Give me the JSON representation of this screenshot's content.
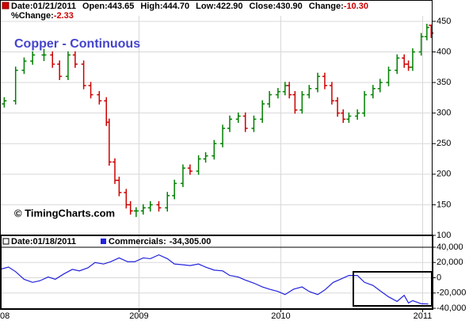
{
  "chart_data": [
    {
      "type": "ohlc",
      "title": "Copper - Continuous",
      "credit": "© TimingCharts.com",
      "info": [
        [
          {
            "label": "Date:",
            "value": "01/21/2011"
          },
          {
            "label": "Open:",
            "value": "443.65"
          },
          {
            "label": "High:",
            "value": "444.70"
          },
          {
            "label": "Low:",
            "value": "422.90"
          },
          {
            "label": "Close:",
            "value": "430.90"
          },
          {
            "label": "Change:",
            "value": "-10.30",
            "value_color": "#cc0000"
          }
        ],
        [
          {
            "label": "%Change:",
            "value": "-2.33",
            "value_color": "#cc0000"
          }
        ]
      ],
      "x": [
        2008.05,
        2008.13,
        2008.19,
        2008.25,
        2008.33,
        2008.39,
        2008.44,
        2008.5,
        2008.55,
        2008.61,
        2008.66,
        2008.72,
        2008.77,
        2008.79,
        2008.83,
        2008.86,
        2008.91,
        2008.94,
        2008.98,
        2009.03,
        2009.08,
        2009.14,
        2009.2,
        2009.25,
        2009.31,
        2009.36,
        2009.42,
        2009.47,
        2009.53,
        2009.59,
        2009.64,
        2009.7,
        2009.75,
        2009.81,
        2009.87,
        2009.92,
        2009.98,
        2010.03,
        2010.06,
        2010.1,
        2010.15,
        2010.2,
        2010.26,
        2010.31,
        2010.36,
        2010.4,
        2010.44,
        2010.48,
        2010.54,
        2010.59,
        2010.65,
        2010.7,
        2010.76,
        2010.82,
        2010.87,
        2010.9,
        2010.93,
        2010.99,
        2011.03,
        2011.06
      ],
      "open": [
        315,
        320,
        370,
        385,
        395,
        395,
        380,
        360,
        395,
        380,
        345,
        330,
        320,
        285,
        220,
        190,
        170,
        150,
        140,
        140,
        145,
        150,
        145,
        165,
        185,
        210,
        205,
        225,
        230,
        250,
        275,
        290,
        295,
        275,
        290,
        315,
        330,
        335,
        345,
        330,
        305,
        330,
        340,
        360,
        345,
        320,
        300,
        290,
        295,
        300,
        330,
        340,
        350,
        370,
        390,
        380,
        375,
        400,
        425,
        443.65
      ],
      "high": [
        326,
        376,
        391,
        401,
        405,
        401,
        386,
        401,
        401,
        386,
        351,
        336,
        326,
        291,
        226,
        196,
        176,
        156,
        146,
        151,
        156,
        156,
        171,
        191,
        216,
        216,
        231,
        236,
        256,
        281,
        296,
        301,
        301,
        296,
        321,
        336,
        341,
        351,
        351,
        336,
        336,
        346,
        366,
        366,
        351,
        326,
        306,
        301,
        306,
        336,
        346,
        356,
        376,
        396,
        396,
        386,
        406,
        431,
        446,
        444.7
      ],
      "low": [
        309,
        314,
        364,
        379,
        385,
        374,
        354,
        354,
        374,
        339,
        324,
        314,
        279,
        214,
        184,
        164,
        144,
        134,
        130,
        134,
        139,
        139,
        139,
        159,
        179,
        199,
        199,
        219,
        224,
        244,
        269,
        284,
        269,
        269,
        284,
        309,
        324,
        329,
        324,
        299,
        299,
        324,
        334,
        339,
        314,
        294,
        284,
        284,
        289,
        294,
        324,
        334,
        344,
        364,
        374,
        369,
        369,
        394,
        419,
        422.9
      ],
      "close": [
        320,
        370,
        385,
        395,
        395,
        380,
        360,
        395,
        380,
        345,
        330,
        320,
        285,
        220,
        190,
        170,
        150,
        140,
        140,
        145,
        150,
        145,
        165,
        185,
        210,
        205,
        225,
        230,
        250,
        275,
        290,
        295,
        275,
        290,
        315,
        330,
        335,
        345,
        330,
        305,
        330,
        340,
        360,
        345,
        320,
        300,
        290,
        295,
        300,
        330,
        340,
        350,
        370,
        390,
        380,
        375,
        400,
        425,
        440,
        430.9
      ],
      "up_color": "#008000",
      "down_color": "#cc0000",
      "xlim": [
        2008.02,
        2011.07
      ],
      "ylim": [
        100,
        459
      ],
      "yticks": [
        100,
        150,
        200,
        250,
        300,
        350,
        400,
        450
      ],
      "grid": true
    },
    {
      "type": "line",
      "info": [
        [
          {
            "label": "Date:",
            "value": "01/18/2011"
          }
        ]
      ],
      "x": [
        2008.02,
        2008.08,
        2008.13,
        2008.19,
        2008.25,
        2008.3,
        2008.36,
        2008.41,
        2008.47,
        2008.53,
        2008.58,
        2008.64,
        2008.69,
        2008.75,
        2008.8,
        2008.86,
        2008.92,
        2008.97,
        2009.03,
        2009.08,
        2009.14,
        2009.2,
        2009.25,
        2009.31,
        2009.36,
        2009.42,
        2009.47,
        2009.53,
        2009.59,
        2009.64,
        2009.7,
        2009.75,
        2009.81,
        2009.87,
        2009.92,
        2009.98,
        2010.03,
        2010.09,
        2010.15,
        2010.2,
        2010.26,
        2010.31,
        2010.37,
        2010.42,
        2010.48,
        2010.54,
        2010.59,
        2010.65,
        2010.7,
        2010.76,
        2010.82,
        2010.87,
        2010.9,
        2010.93,
        2010.99,
        2011.04
      ],
      "series": [
        {
          "name": "Commercials:",
          "last_label": "-34,305.00",
          "color": "#2222dd",
          "values": [
            11000,
            14000,
            8000,
            -2000,
            -6000,
            -4000,
            1000,
            -2000,
            5000,
            11000,
            9000,
            13000,
            20000,
            18000,
            21000,
            26000,
            21000,
            21000,
            26000,
            25000,
            30000,
            25000,
            18000,
            17000,
            16000,
            18000,
            14000,
            10000,
            9000,
            3000,
            1000,
            -3000,
            -7000,
            -12000,
            -15000,
            -18000,
            -22000,
            -15000,
            -12000,
            -18000,
            -22000,
            -16000,
            -6000,
            -2000,
            3000,
            3000,
            -6000,
            -10000,
            -17000,
            -25000,
            -31000,
            -23000,
            -33000,
            -30000,
            -34000,
            -34305
          ]
        }
      ],
      "xlim": [
        2008.02,
        2011.07
      ],
      "ylim": [
        -41000,
        54500
      ],
      "yticks": [
        {
          "value": 40000,
          "label": "40,000"
        },
        {
          "value": 20000,
          "label": "20,000"
        },
        0,
        {
          "value": -20000,
          "label": "-20,000"
        },
        {
          "value": -40000,
          "label": "-40,000"
        }
      ],
      "xticks": [
        {
          "value": 2008,
          "label": "08"
        },
        2009,
        2010,
        2011
      ],
      "grid": true
    }
  ]
}
